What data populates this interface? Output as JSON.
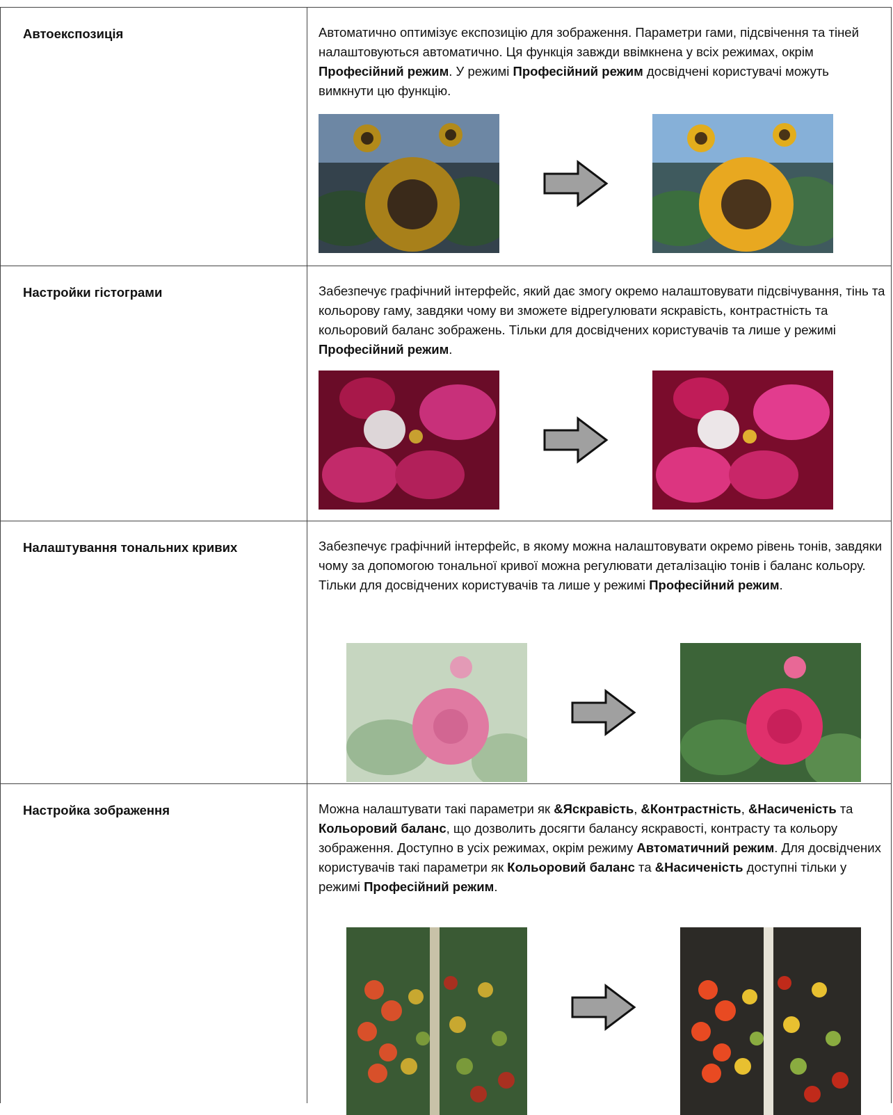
{
  "table": {
    "rows": [
      {
        "name": "Автоекспозиція",
        "description": [
          {
            "text": "Автоматично оптимізує експозицію для зображення. Параметри гами, підсвічення та тіней налаштовуються автоматично. Ця функція завжди ввімкнена у всіх режимах, окрім ",
            "bold": false
          },
          {
            "text": "Професійний режим",
            "bold": true
          },
          {
            "text": ". У режимі ",
            "bold": false
          },
          {
            "text": "Професійний режим",
            "bold": true
          },
          {
            "text": " досвідчені користувачі можуть вимкнути цю функцію.",
            "bold": false
          }
        ]
      },
      {
        "name": "Настройки гістограми",
        "description": [
          {
            "text": "Забезпечує графічний інтерфейс, який дає змогу окремо налаштовувати підсвічування, тінь та кольорову гаму, завдяки чому ви зможете відрегулювати яскравість, контрастність та кольоровий баланс зображень. Тільки для досвідчених користувачів та лише у режимі ",
            "bold": false
          },
          {
            "text": "Професійний режим",
            "bold": true
          },
          {
            "text": ".",
            "bold": false
          }
        ]
      },
      {
        "name": "Налаштування тональних кривих",
        "description": [
          {
            "text": "Забезпечує графічний інтерфейс, в якому можна налаштовувати окремо рівень тонів, завдяки чому за допомогою тональної кривої можна регулювати деталізацію тонів і баланс кольору. Тільки для досвідчених користувачів та лише у режимі ",
            "bold": false
          },
          {
            "text": "Професійний режим",
            "bold": true
          },
          {
            "text": ".",
            "bold": false
          }
        ]
      },
      {
        "name": "Настройка зображення",
        "description": [
          {
            "text": "Можна налаштувати такі параметри як ",
            "bold": false
          },
          {
            "text": "&Яскравість",
            "bold": true
          },
          {
            "text": ", ",
            "bold": false
          },
          {
            "text": "&Контрастність",
            "bold": true
          },
          {
            "text": ", ",
            "bold": false
          },
          {
            "text": "&Насиченість",
            "bold": true
          },
          {
            "text": " та ",
            "bold": false
          },
          {
            "text": "Кольоровий баланс",
            "bold": true
          },
          {
            "text": ", що дозволить досягти балансу яскравості, контрасту та кольору зображення. Доступно в усіх режимах, окрім режиму ",
            "bold": false
          },
          {
            "text": "Автоматичний режим",
            "bold": true
          },
          {
            "text": ". Для досвідчених користувачів такі параметри як ",
            "bold": false
          },
          {
            "text": "Кольоровий баланс",
            "bold": true
          },
          {
            "text": " та ",
            "bold": false
          },
          {
            "text": "&Насиченість",
            "bold": true
          },
          {
            "text": " доступні тільки у режимі ",
            "bold": false
          },
          {
            "text": "Професійний режим",
            "bold": true
          },
          {
            "text": ".",
            "bold": false
          }
        ]
      }
    ]
  }
}
